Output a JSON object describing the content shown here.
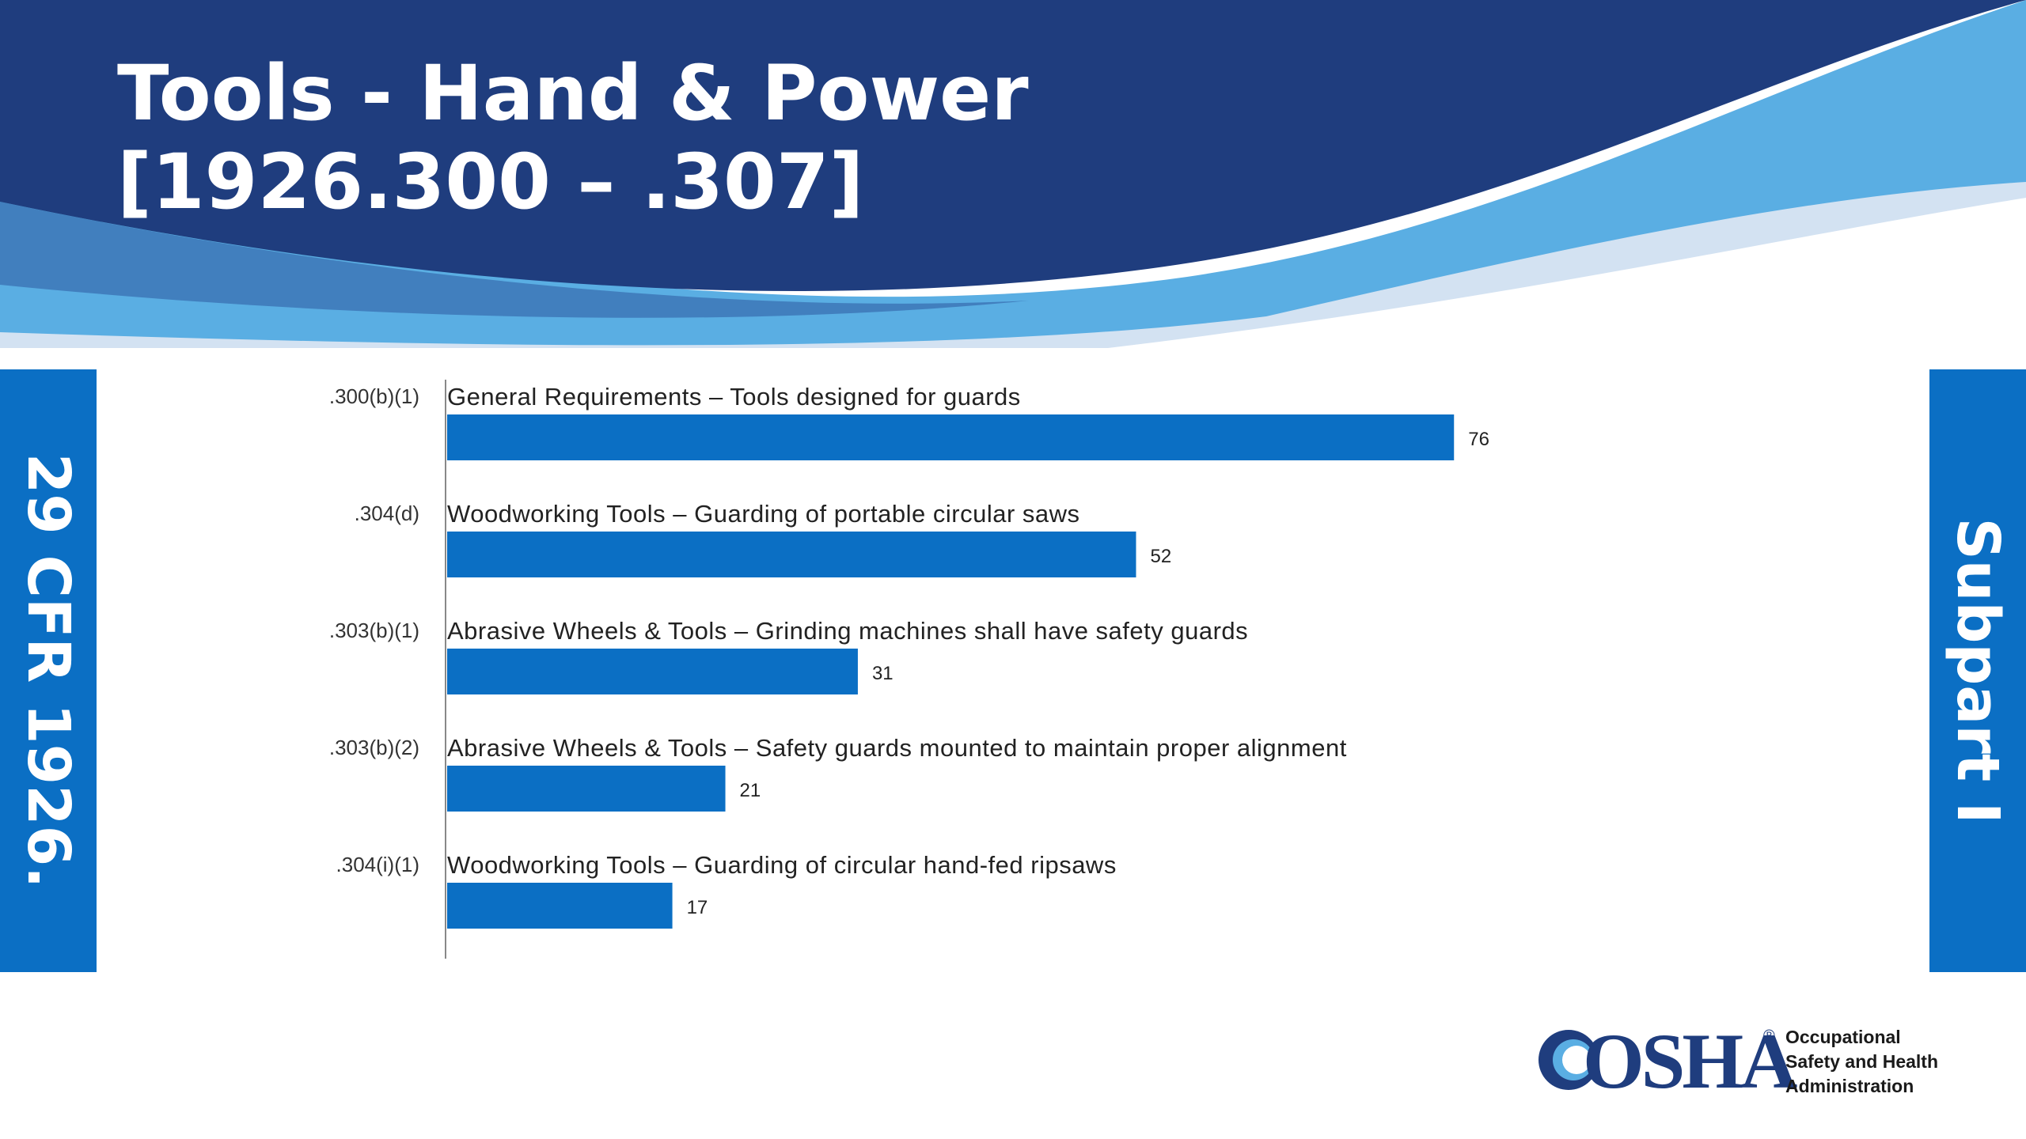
{
  "slide": {
    "title_line1": "Tools - Hand & Power",
    "title_line2": "[1926.300 – .307]",
    "left_band_text": "29 CFR 1926.",
    "right_band_text": "Subpart I"
  },
  "logo": {
    "wordmark": "OSHA",
    "registered": "®",
    "line1": "Occupational",
    "line2": "Safety and Health",
    "line3": "Administration"
  },
  "colors": {
    "header_dark": "#1f3d7e",
    "header_light": "#5aaee3",
    "header_pale": "#d3e2f2",
    "bar": "#0b6fc4",
    "band": "#0b6fc4"
  },
  "chart_data": {
    "type": "bar",
    "orientation": "horizontal",
    "categories": [
      ".300(b)(1)",
      ".304(d)",
      ".303(b)(1)",
      ".303(b)(2)",
      ".304(i)(1)"
    ],
    "descriptions": [
      "General Requirements – Tools designed for guards",
      "Woodworking Tools – Guarding of portable circular saws",
      "Abrasive Wheels & Tools – Grinding machines shall have safety guards",
      "Abrasive Wheels & Tools – Safety guards mounted to maintain proper alignment",
      "Woodworking Tools – Guarding of circular hand-fed ripsaws"
    ],
    "values": [
      76,
      52,
      31,
      21,
      17
    ],
    "xlim": [
      0,
      100
    ],
    "grid": false,
    "legend": "none",
    "data_labels": true
  }
}
